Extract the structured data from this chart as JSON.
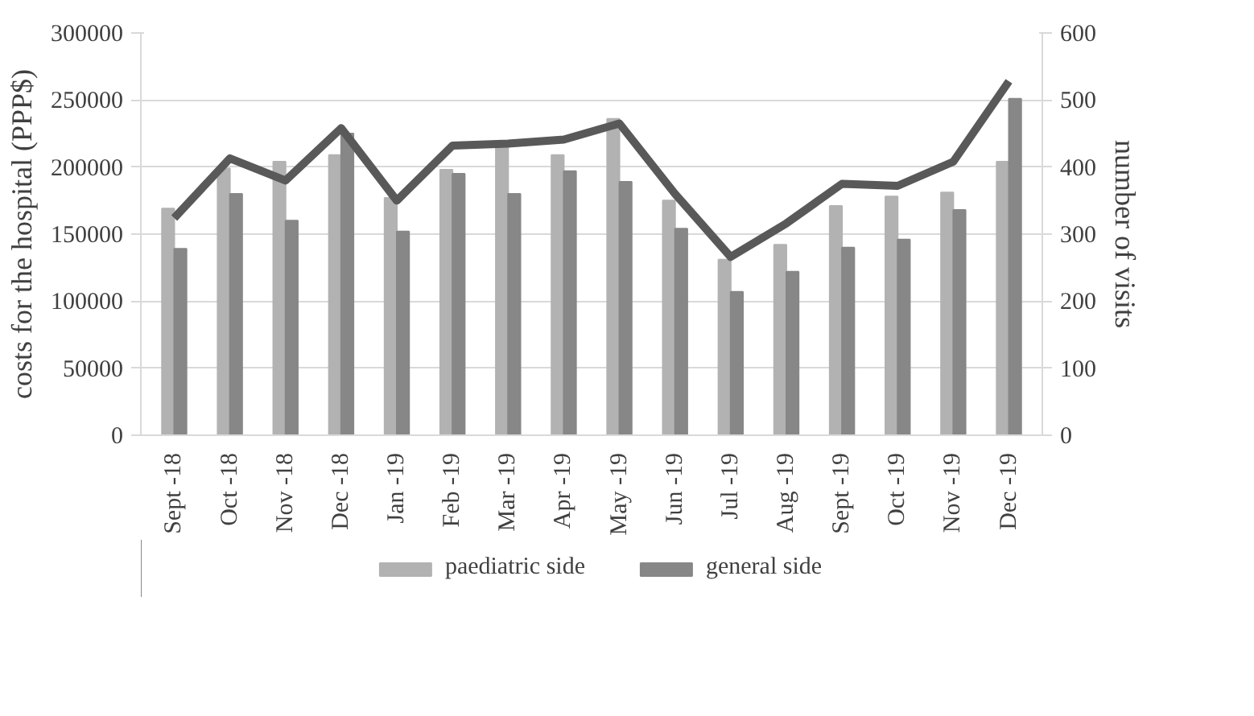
{
  "chart_data": {
    "type": "bar",
    "categories": [
      "Sept -18",
      "Oct -18",
      "Nov -18",
      "Dec -18",
      "Jan -19",
      "Feb -19",
      "Mar -19",
      "Apr -19",
      "May -19",
      "Jun -19",
      "Jul -19",
      "Aug -19",
      "Sept -19",
      "Oct -19",
      "Nov -19",
      "Dec -19"
    ],
    "ylabel": "costs for the hospital (PPP$)",
    "y2label": "number of visits",
    "ylim": [
      0,
      300000
    ],
    "yticks": [
      0,
      50000,
      100000,
      150000,
      200000,
      250000,
      300000
    ],
    "y2lim": [
      0,
      600
    ],
    "y2ticks": [
      0,
      100,
      200,
      300,
      400,
      500,
      600
    ],
    "grid": "y",
    "legend": "bottom",
    "series": [
      {
        "name": "paediatric side",
        "color": "#b2b2b2",
        "values": [
          169000,
          199000,
          204000,
          209000,
          177000,
          198000,
          215000,
          209000,
          236000,
          175000,
          131000,
          142000,
          171000,
          178000,
          181000,
          204000
        ]
      },
      {
        "name": "general side",
        "color": "#878787",
        "values": [
          139000,
          180000,
          160000,
          225000,
          152000,
          195000,
          180000,
          197000,
          189000,
          154000,
          107000,
          122000,
          140000,
          146000,
          168000,
          251000
        ]
      },
      {
        "type": "line",
        "axis": "y2",
        "color": "#595959",
        "values": [
          324,
          413,
          380,
          458,
          350,
          432,
          435,
          441,
          465,
          360,
          266,
          316,
          375,
          372,
          408,
          528
        ]
      }
    ]
  }
}
